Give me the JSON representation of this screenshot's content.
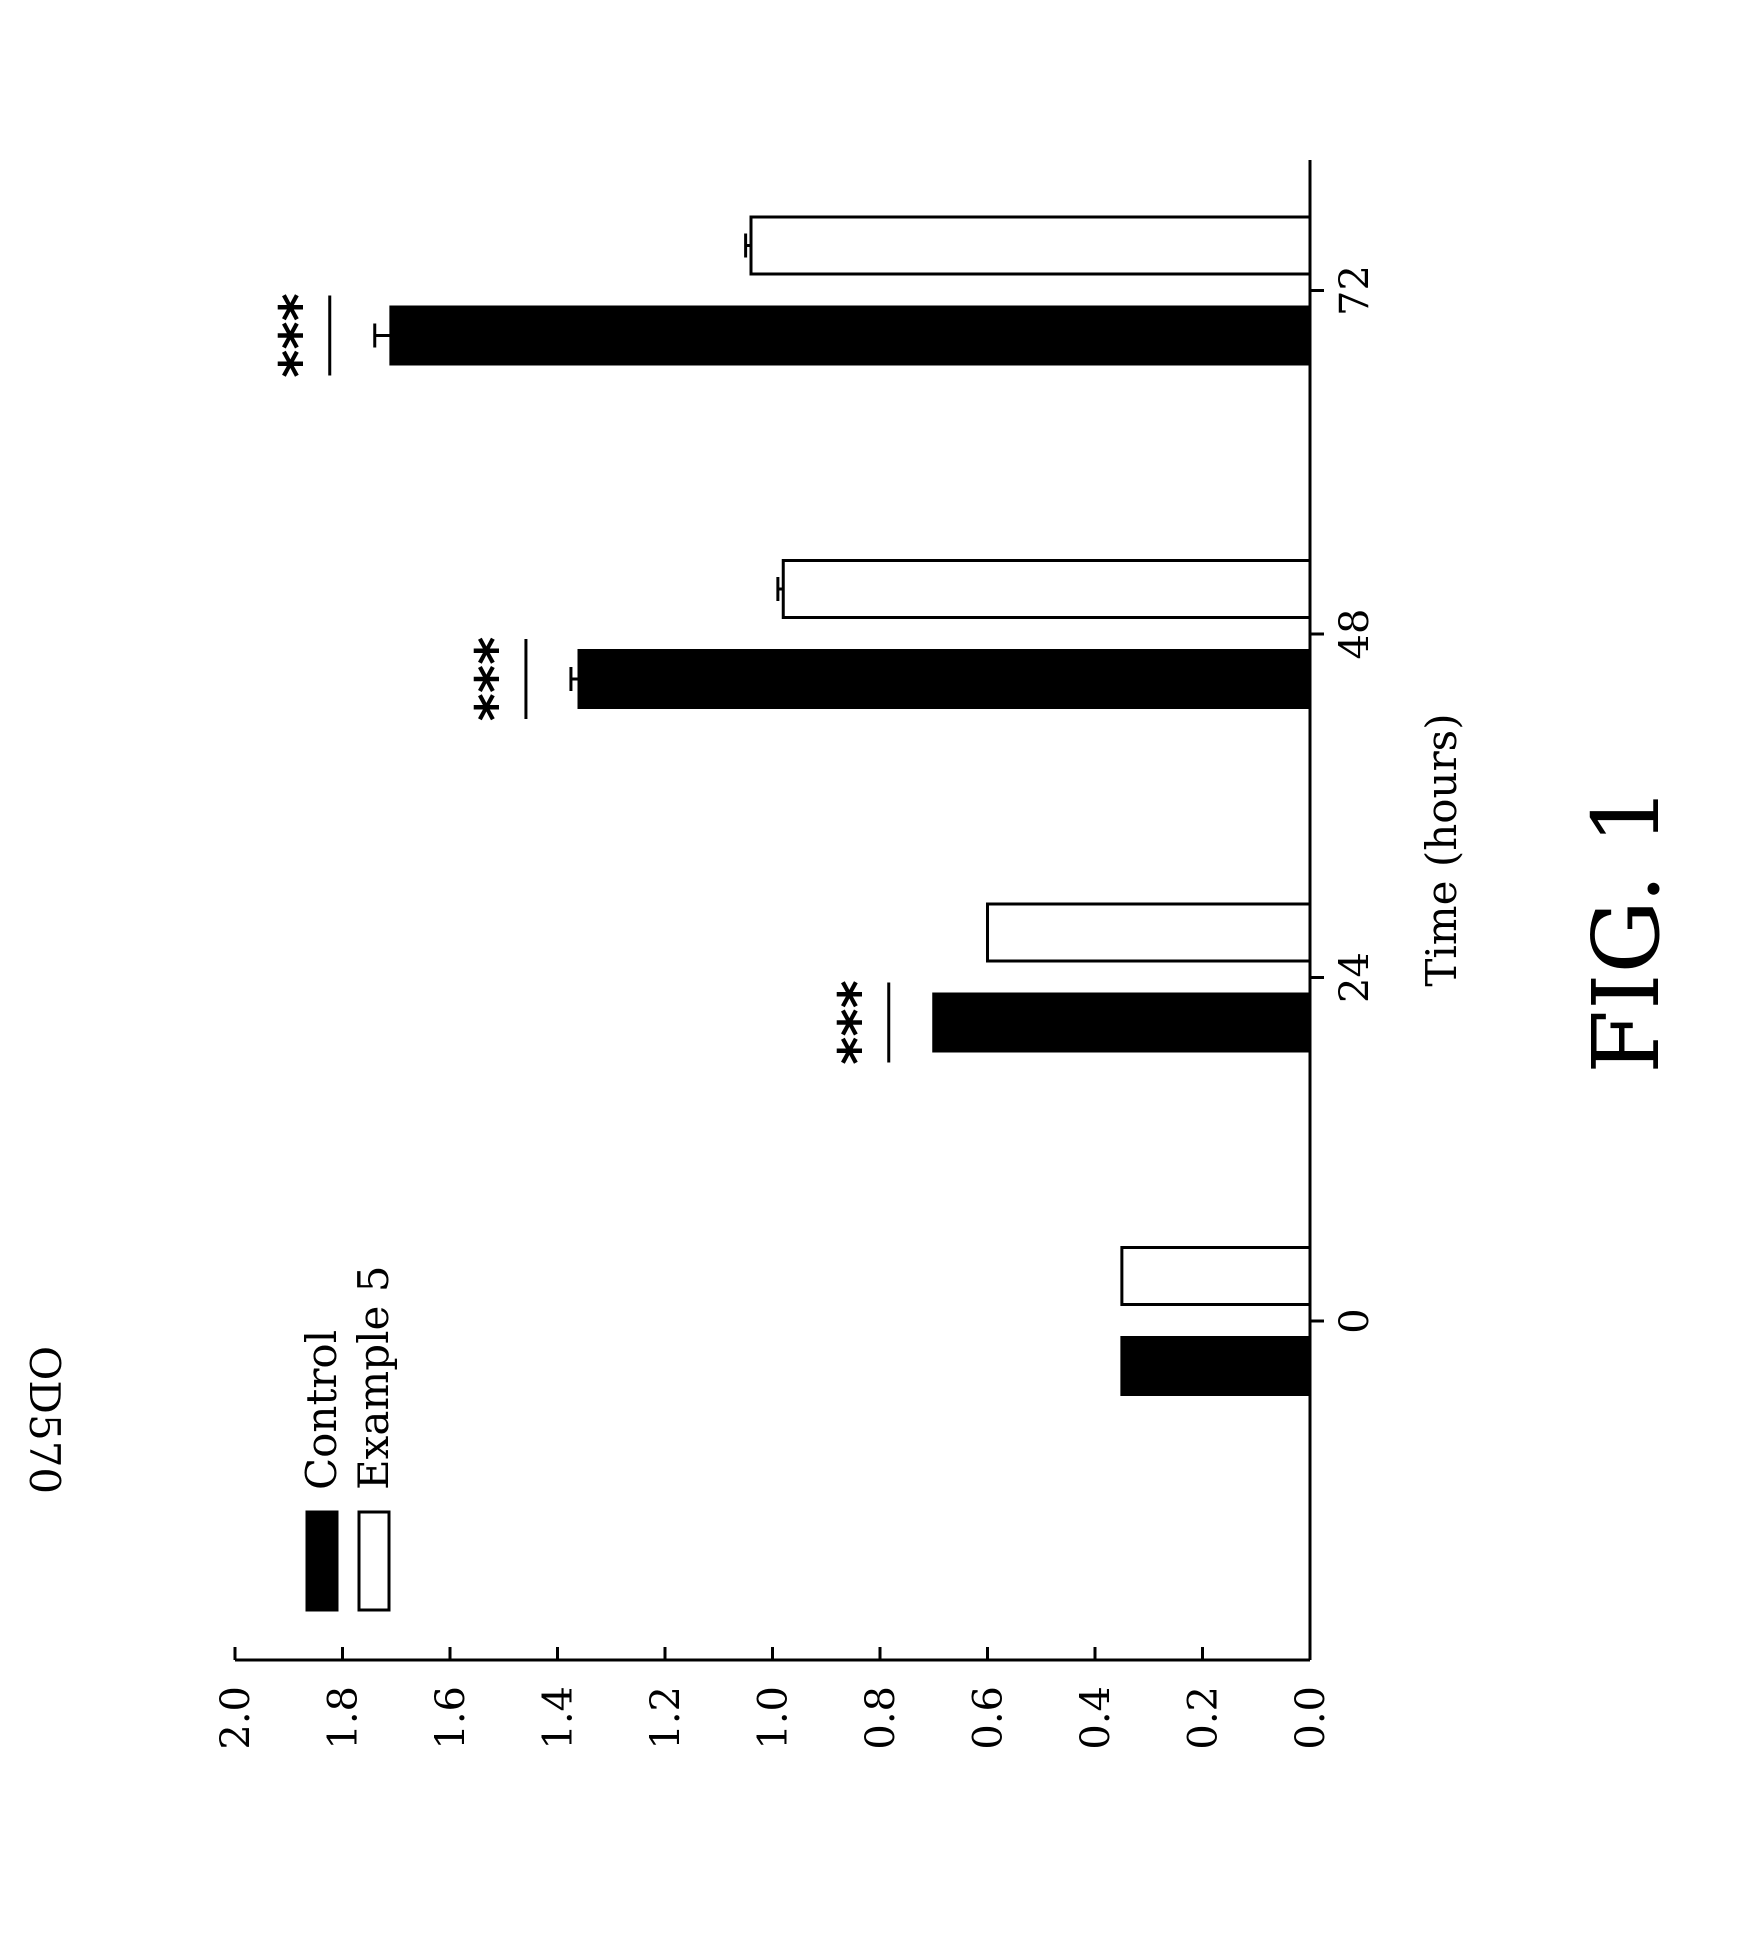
{
  "figure_label": "FIG. 1",
  "chart_data": {
    "type": "bar",
    "title": "",
    "xlabel": "Time (hours)",
    "ylabel": "OD570",
    "categories": [
      "0",
      "24",
      "48",
      "72"
    ],
    "series": [
      {
        "name": "Control",
        "values": [
          0.35,
          0.7,
          1.36,
          1.71
        ],
        "errors": [
          0.0,
          0.0,
          0.015,
          0.03
        ],
        "fill": "#000000"
      },
      {
        "name": "Example 5",
        "values": [
          0.35,
          0.6,
          0.98,
          1.04
        ],
        "errors": [
          0.0,
          0.0,
          0.01,
          0.01
        ],
        "fill": "#ffffff"
      }
    ],
    "significance": [
      "",
      "***",
      "***",
      "***"
    ],
    "y_ticks": [
      "0.0",
      "0.2",
      "0.4",
      "0.6",
      "0.8",
      "1.0",
      "1.2",
      "1.4",
      "1.6",
      "1.8",
      "2.0"
    ],
    "ylim": [
      0,
      2.0
    ],
    "grid": false,
    "legend_position": "top-left",
    "orientation": "rotated 90 degrees counter-clockwise"
  }
}
